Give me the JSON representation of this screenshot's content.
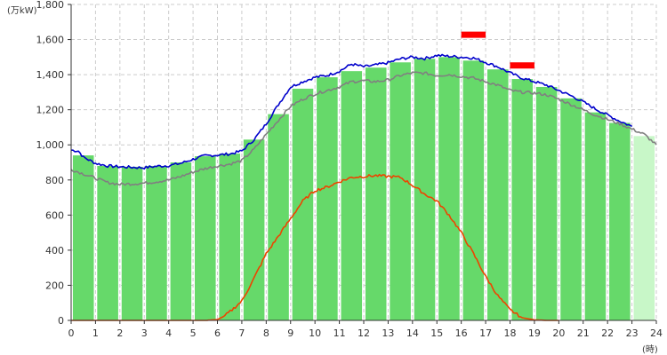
{
  "chart_data": {
    "type": "bar",
    "y_unit_label": "(万kW)",
    "x_unit_label": "(時)",
    "x_ticks": [
      "0",
      "1",
      "2",
      "3",
      "4",
      "5",
      "6",
      "7",
      "8",
      "9",
      "10",
      "11",
      "12",
      "13",
      "14",
      "15",
      "16",
      "17",
      "18",
      "19",
      "20",
      "21",
      "22",
      "23",
      "24"
    ],
    "y_ticks": [
      "0",
      "200",
      "400",
      "600",
      "800",
      "1,000",
      "1,200",
      "1,400",
      "1,600",
      "1,800"
    ],
    "ylim": [
      0,
      1800
    ],
    "xlim": [
      0,
      24
    ],
    "grid": true,
    "colors": {
      "bar_actual": "#66d96a",
      "bar_forecast": "#c8f7c8",
      "line_blue": "#0000cc",
      "line_gray": "#808080",
      "line_orange": "#ee4400",
      "marker": "#ff0000",
      "grid": "#cccccc"
    },
    "series": [
      {
        "kind": "bar",
        "values": [
          940,
          880,
          875,
          880,
          900,
          935,
          950,
          1030,
          1175,
          1320,
          1385,
          1420,
          1440,
          1470,
          1490,
          1500,
          1480,
          1430,
          1375,
          1330,
          1265,
          1185,
          1125,
          1050
        ],
        "forecast_from_index": 23
      },
      {
        "kind": "line",
        "color_key": "line_blue",
        "x": [
          0,
          0.3,
          0.5,
          1,
          1.5,
          2,
          2.5,
          3,
          3.5,
          4,
          4.5,
          5,
          5.5,
          6,
          6.5,
          7,
          7.5,
          8,
          8.5,
          9,
          9.5,
          10,
          10.5,
          11,
          11.5,
          12,
          12.5,
          13,
          13.5,
          14,
          14.5,
          15,
          15.5,
          16,
          16.5,
          17,
          17.5,
          18,
          18.5,
          19,
          19.5,
          20,
          20.5,
          21,
          21.5,
          22,
          22.5,
          23
        ],
        "y": [
          970,
          965,
          930,
          895,
          880,
          875,
          872,
          870,
          878,
          882,
          895,
          918,
          938,
          942,
          948,
          965,
          1030,
          1120,
          1230,
          1330,
          1360,
          1385,
          1395,
          1420,
          1460,
          1445,
          1455,
          1468,
          1490,
          1500,
          1492,
          1510,
          1505,
          1500,
          1495,
          1470,
          1445,
          1410,
          1380,
          1360,
          1340,
          1310,
          1280,
          1245,
          1205,
          1170,
          1135,
          1105
        ]
      },
      {
        "kind": "line",
        "color_key": "line_gray",
        "x": [
          0,
          0.5,
          1,
          1.5,
          2,
          2.5,
          3,
          3.5,
          4,
          4.5,
          5,
          5.5,
          6,
          6.5,
          7,
          7.5,
          8,
          8.5,
          9,
          9.5,
          10,
          10.5,
          11,
          11.5,
          12,
          12.5,
          13,
          13.5,
          14,
          14.5,
          15,
          15.5,
          16,
          16.5,
          17,
          17.5,
          18,
          18.5,
          19,
          19.5,
          20,
          20.5,
          21,
          21.5,
          22,
          22.5,
          23,
          23.5,
          24
        ],
        "y": [
          860,
          835,
          810,
          785,
          775,
          778,
          782,
          790,
          800,
          820,
          845,
          865,
          880,
          890,
          910,
          975,
          1060,
          1140,
          1220,
          1260,
          1290,
          1310,
          1330,
          1360,
          1365,
          1360,
          1370,
          1395,
          1410,
          1408,
          1395,
          1400,
          1390,
          1380,
          1360,
          1340,
          1310,
          1300,
          1295,
          1285,
          1260,
          1230,
          1200,
          1170,
          1145,
          1120,
          1090,
          1060,
          1000
        ]
      },
      {
        "kind": "line",
        "color_key": "line_orange",
        "x": [
          0,
          5.5,
          6,
          6.3,
          6.6,
          7,
          7.5,
          8,
          8.5,
          9,
          9.5,
          10,
          10.5,
          11,
          11.5,
          12,
          12.5,
          13,
          13.5,
          14,
          14.5,
          15,
          15.5,
          16,
          16.5,
          17,
          17.5,
          18,
          18.5,
          19,
          19.5,
          20
        ],
        "y": [
          0,
          0,
          5,
          25,
          60,
          110,
          240,
          380,
          480,
          580,
          680,
          740,
          760,
          790,
          815,
          820,
          825,
          820,
          815,
          770,
          720,
          680,
          600,
          500,
          380,
          250,
          140,
          60,
          15,
          3,
          0,
          0
        ]
      }
    ],
    "markers": [
      {
        "x0": 16.0,
        "x1": 17.0,
        "y": 1630
      },
      {
        "x0": 18.0,
        "x1": 19.0,
        "y": 1455
      }
    ]
  }
}
